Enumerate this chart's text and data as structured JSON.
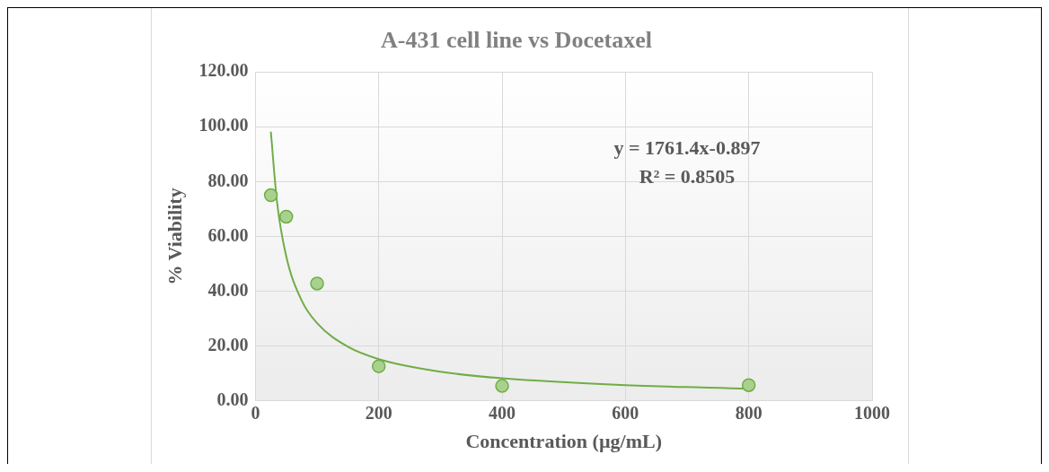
{
  "chart_data": {
    "type": "scatter",
    "title": "A-431 cell line vs Docetaxel",
    "xlabel": "Concentration (µg/mL)",
    "ylabel": "% Viability",
    "series": [
      {
        "color": "#a9d18e",
        "x": [
          25,
          50,
          100,
          200,
          400,
          800
        ],
        "values": [
          75,
          67.2,
          42.8,
          12.6,
          5.4,
          5.7
        ]
      },
      {
        "type": "line",
        "marker": "none",
        "color": "#70ad47",
        "x": [
          25,
          35,
          50,
          75,
          100,
          150,
          200,
          300,
          400,
          600,
          800
        ],
        "values": [
          98.2,
          72.6,
          52.7,
          36.6,
          28.3,
          19.7,
          15.2,
          10.6,
          8.2,
          5.7,
          4.4
        ]
      }
    ],
    "xlim": [
      0,
      1000
    ],
    "xticks": [
      0,
      200,
      400,
      600,
      800,
      1000
    ],
    "ylim": [
      0,
      120
    ],
    "yticks": [
      {
        "value": 0,
        "label": "0.00"
      },
      {
        "value": 20,
        "label": "20.00"
      },
      {
        "value": 40,
        "label": "40.00"
      },
      {
        "value": 60,
        "label": "60.00"
      },
      {
        "value": 80,
        "label": "80.00"
      },
      {
        "value": 100,
        "label": "100.00"
      },
      {
        "value": 120,
        "label": "120.00"
      }
    ],
    "grid": true,
    "marker": "circle",
    "legend": false,
    "annotations": [
      "y = 1761.4x-0.897",
      "R² = 0.8505"
    ]
  }
}
